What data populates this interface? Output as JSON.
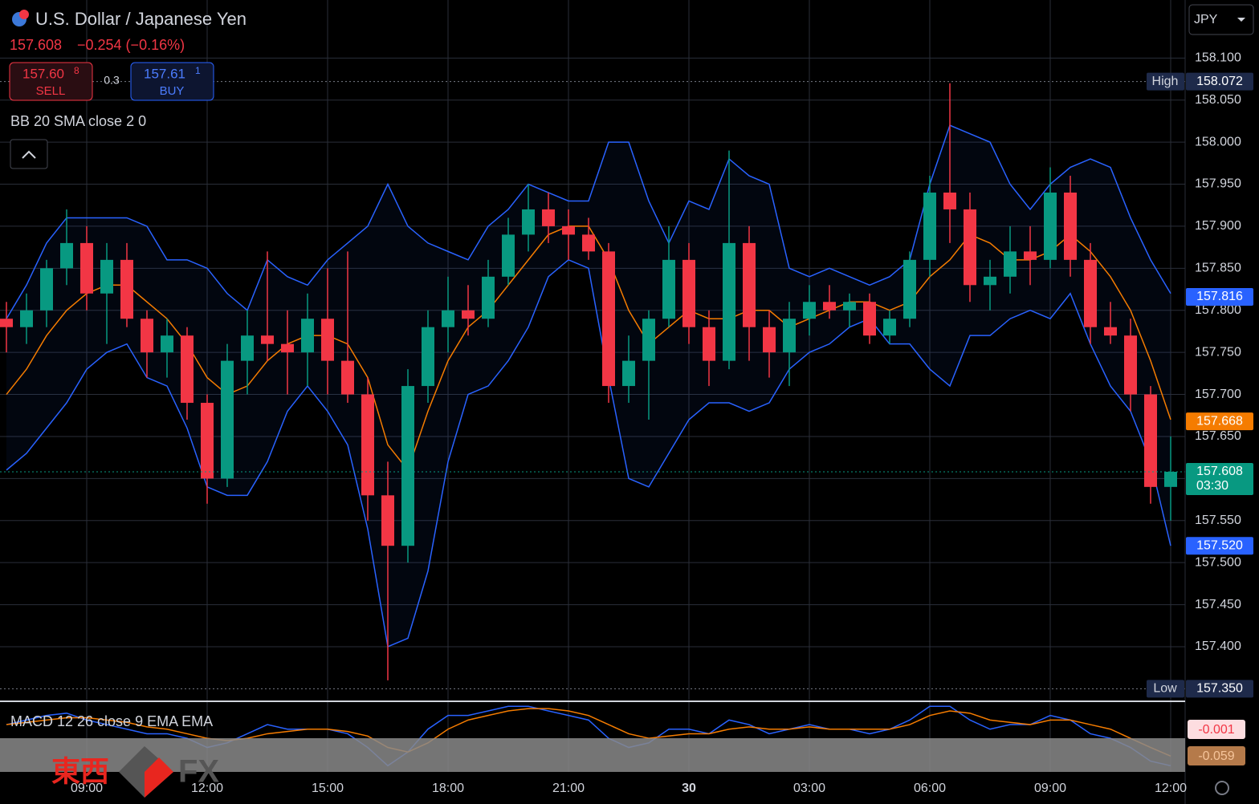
{
  "header": {
    "title": "U.S. Dollar / Japanese Yen",
    "price": "157.608",
    "change": "−0.254 (−0.16%)",
    "sell": {
      "price": "157.60",
      "pip": "8",
      "label": "SELL"
    },
    "spread": "0.3",
    "buy": {
      "price": "157.61",
      "pip": "1",
      "label": "BUY"
    },
    "indicator": "BB 20 SMA close 2 0",
    "currency": "JPY",
    "macd_label": "MACD 12 26 close 9 EMA EMA",
    "macd_tags": [
      "-0.001",
      "-0.059"
    ],
    "logo": [
      "東西",
      "FX"
    ]
  },
  "chart_data": {
    "type": "candlestick",
    "categories": [
      null,
      null,
      null,
      null,
      "09:00",
      null,
      null,
      null,
      null,
      null,
      "12:00",
      null,
      null,
      null,
      null,
      null,
      "15:00",
      null,
      null,
      null,
      null,
      null,
      "18:00",
      null,
      null,
      null,
      null,
      null,
      "21:00",
      null,
      null,
      null,
      null,
      null,
      "30",
      null,
      null,
      null,
      null,
      null,
      "03:00",
      null,
      null,
      null,
      null,
      null,
      "06:00",
      null,
      null,
      null,
      null,
      null,
      "09:00",
      null,
      null,
      null,
      null,
      null,
      "12:00"
    ],
    "open": [
      157.79,
      157.78,
      157.8,
      157.85,
      157.88,
      157.82,
      157.86,
      157.79,
      157.75,
      157.77,
      157.69,
      157.6,
      157.74,
      157.77,
      157.76,
      157.75,
      157.79,
      157.74,
      157.7,
      157.58,
      157.52,
      157.71,
      157.78,
      157.8,
      157.79,
      157.84,
      157.89,
      157.92,
      157.9,
      157.89,
      157.87,
      157.71,
      157.74,
      157.79,
      157.86,
      157.78,
      157.74,
      157.88,
      157.78,
      157.75,
      157.79,
      157.81,
      157.8,
      157.81,
      157.77,
      157.79,
      157.86,
      157.94,
      157.92,
      157.83,
      157.84,
      157.87,
      157.86,
      157.94,
      157.86,
      157.78,
      157.77,
      157.7,
      157.59
    ],
    "high": [
      157.81,
      157.82,
      157.86,
      157.92,
      157.9,
      157.88,
      157.88,
      157.8,
      157.79,
      157.78,
      157.7,
      157.76,
      157.8,
      157.87,
      157.8,
      157.82,
      157.85,
      157.87,
      157.72,
      157.62,
      157.73,
      157.8,
      157.84,
      157.83,
      157.86,
      157.91,
      157.95,
      157.94,
      157.92,
      157.91,
      157.88,
      157.77,
      157.8,
      157.9,
      157.88,
      157.8,
      157.99,
      157.9,
      157.8,
      157.81,
      157.83,
      157.83,
      157.82,
      157.82,
      157.8,
      157.87,
      157.96,
      158.07,
      157.94,
      157.86,
      157.9,
      157.9,
      157.97,
      157.96,
      157.88,
      157.81,
      157.79,
      157.71,
      157.65
    ],
    "low": [
      157.75,
      157.76,
      157.78,
      157.83,
      157.8,
      157.76,
      157.78,
      157.72,
      157.72,
      157.67,
      157.57,
      157.59,
      157.7,
      157.74,
      157.7,
      157.71,
      157.7,
      157.69,
      157.55,
      157.36,
      157.5,
      157.69,
      157.75,
      157.77,
      157.78,
      157.83,
      157.87,
      157.88,
      157.86,
      157.86,
      157.69,
      157.69,
      157.67,
      157.78,
      157.76,
      157.71,
      157.73,
      157.74,
      157.72,
      157.71,
      157.77,
      157.79,
      157.78,
      157.76,
      157.76,
      157.78,
      157.84,
      157.88,
      157.81,
      157.8,
      157.82,
      157.83,
      157.85,
      157.84,
      157.76,
      157.76,
      157.68,
      157.57,
      157.55
    ],
    "close": [
      157.78,
      157.8,
      157.85,
      157.88,
      157.82,
      157.86,
      157.79,
      157.75,
      157.77,
      157.69,
      157.6,
      157.74,
      157.77,
      157.76,
      157.75,
      157.79,
      157.74,
      157.7,
      157.58,
      157.52,
      157.71,
      157.78,
      157.8,
      157.79,
      157.84,
      157.89,
      157.92,
      157.9,
      157.89,
      157.87,
      157.71,
      157.74,
      157.79,
      157.86,
      157.78,
      157.74,
      157.88,
      157.78,
      157.75,
      157.79,
      157.81,
      157.8,
      157.81,
      157.77,
      157.79,
      157.86,
      157.94,
      157.92,
      157.83,
      157.84,
      157.87,
      157.86,
      157.94,
      157.86,
      157.78,
      157.77,
      157.7,
      157.59,
      157.608
    ],
    "up_color": "#089981",
    "down_color": "#f23645",
    "ylim": [
      157.337,
      158.169
    ],
    "yticks": [
      {
        "value": 157.4,
        "label": "157.400"
      },
      {
        "value": 157.45,
        "label": "157.450"
      },
      {
        "value": 157.5,
        "label": "157.500"
      },
      {
        "value": 157.55,
        "label": "157.550"
      },
      {
        "value": 157.6,
        "label": "157.600"
      },
      {
        "value": 157.65,
        "label": "157.650"
      },
      {
        "value": 157.7,
        "label": "157.700"
      },
      {
        "value": 157.75,
        "label": "157.750"
      },
      {
        "value": 157.8,
        "label": "157.800"
      },
      {
        "value": 157.85,
        "label": "157.850"
      },
      {
        "value": 157.9,
        "label": "157.900"
      },
      {
        "value": 157.95,
        "label": "157.950"
      },
      {
        "value": 158.0,
        "label": "158.000"
      },
      {
        "value": 158.05,
        "label": "158.050"
      },
      {
        "value": 158.1,
        "label": "158.100"
      }
    ],
    "grid": true,
    "bands": {
      "band_color": "#2962ff",
      "mid_color": "#f57c00",
      "upper": [
        157.79,
        157.83,
        157.88,
        157.91,
        157.91,
        157.91,
        157.91,
        157.9,
        157.86,
        157.86,
        157.85,
        157.82,
        157.8,
        157.86,
        157.84,
        157.83,
        157.86,
        157.88,
        157.9,
        157.95,
        157.9,
        157.88,
        157.87,
        157.86,
        157.9,
        157.92,
        157.95,
        157.94,
        157.93,
        157.93,
        158.0,
        158.0,
        157.93,
        157.88,
        157.93,
        157.92,
        157.98,
        157.96,
        157.95,
        157.85,
        157.84,
        157.85,
        157.84,
        157.83,
        157.84,
        157.86,
        157.95,
        158.02,
        158.01,
        158.0,
        157.95,
        157.92,
        157.95,
        157.97,
        157.98,
        157.97,
        157.91,
        157.86,
        157.82
      ],
      "middle": [
        157.7,
        157.73,
        157.77,
        157.8,
        157.82,
        157.83,
        157.83,
        157.81,
        157.79,
        157.76,
        157.72,
        157.7,
        157.71,
        157.74,
        157.76,
        157.77,
        157.77,
        157.76,
        157.72,
        157.64,
        157.61,
        157.68,
        157.74,
        157.78,
        157.8,
        157.83,
        157.86,
        157.89,
        157.9,
        157.9,
        157.86,
        157.8,
        157.76,
        157.78,
        157.8,
        157.79,
        157.79,
        157.8,
        157.8,
        157.78,
        157.79,
        157.8,
        157.81,
        157.81,
        157.8,
        157.81,
        157.84,
        157.86,
        157.89,
        157.88,
        157.86,
        157.86,
        157.87,
        157.89,
        157.87,
        157.84,
        157.8,
        157.74,
        157.67
      ],
      "lower": [
        157.61,
        157.63,
        157.66,
        157.69,
        157.73,
        157.75,
        157.76,
        157.72,
        157.71,
        157.66,
        157.59,
        157.58,
        157.58,
        157.62,
        157.68,
        157.71,
        157.68,
        157.64,
        157.54,
        157.4,
        157.41,
        157.49,
        157.62,
        157.7,
        157.71,
        157.74,
        157.78,
        157.84,
        157.86,
        157.85,
        157.72,
        157.6,
        157.59,
        157.63,
        157.67,
        157.69,
        157.69,
        157.68,
        157.69,
        157.73,
        157.75,
        157.76,
        157.78,
        157.79,
        157.76,
        157.76,
        157.73,
        157.71,
        157.77,
        157.77,
        157.79,
        157.8,
        157.79,
        157.82,
        157.76,
        157.71,
        157.68,
        157.62,
        157.52
      ]
    },
    "price_tags": [
      {
        "name": "High",
        "value": 158.072,
        "label": "158.072",
        "color": "#1e2a4a"
      },
      {
        "name": "Low",
        "value": 157.35,
        "label": "157.350",
        "color": "#1e2a4a"
      },
      {
        "value": 157.816,
        "label": "157.816",
        "color": "#2962ff"
      },
      {
        "value": 157.668,
        "label": "157.668",
        "color": "#f57c00"
      },
      {
        "value": 157.608,
        "label": "157.608",
        "sub": "03:30",
        "color": "#089981"
      },
      {
        "value": 157.52,
        "label": "157.520",
        "color": "#2962ff"
      }
    ],
    "macd": {
      "ylim": [
        -0.09,
        0.054
      ],
      "series": [
        {
          "color": "#2962ff",
          "values": [
            0.01,
            0.02,
            0.03,
            0.035,
            0.02,
            0.01,
            0.0,
            -0.01,
            -0.01,
            -0.02,
            -0.04,
            -0.03,
            -0.01,
            0.01,
            0.0,
            0.0,
            0.0,
            -0.01,
            -0.04,
            -0.08,
            -0.05,
            0.0,
            0.03,
            0.03,
            0.04,
            0.05,
            0.05,
            0.04,
            0.03,
            0.02,
            -0.02,
            -0.04,
            -0.03,
            0.0,
            0.0,
            -0.01,
            0.02,
            0.01,
            -0.01,
            0.0,
            0.01,
            0.0,
            0.0,
            -0.01,
            0.0,
            0.02,
            0.05,
            0.05,
            0.02,
            0.0,
            0.01,
            0.01,
            0.03,
            0.02,
            -0.01,
            -0.02,
            -0.04,
            -0.07,
            -0.08
          ]
        },
        {
          "color": "#f57c00",
          "values": [
            0.01,
            0.015,
            0.02,
            0.025,
            0.025,
            0.02,
            0.015,
            0.005,
            0.0,
            -0.01,
            -0.02,
            -0.025,
            -0.02,
            -0.01,
            -0.005,
            0.0,
            0.0,
            -0.005,
            -0.015,
            -0.04,
            -0.05,
            -0.03,
            0.0,
            0.02,
            0.03,
            0.04,
            0.045,
            0.045,
            0.04,
            0.03,
            0.01,
            -0.01,
            -0.02,
            -0.015,
            -0.01,
            -0.01,
            0.0,
            0.005,
            0.0,
            0.0,
            0.005,
            0.0,
            0.0,
            0.0,
            0.0,
            0.01,
            0.03,
            0.04,
            0.035,
            0.02,
            0.015,
            0.01,
            0.02,
            0.02,
            0.01,
            0.0,
            -0.02,
            -0.04,
            -0.059
          ]
        }
      ]
    }
  }
}
